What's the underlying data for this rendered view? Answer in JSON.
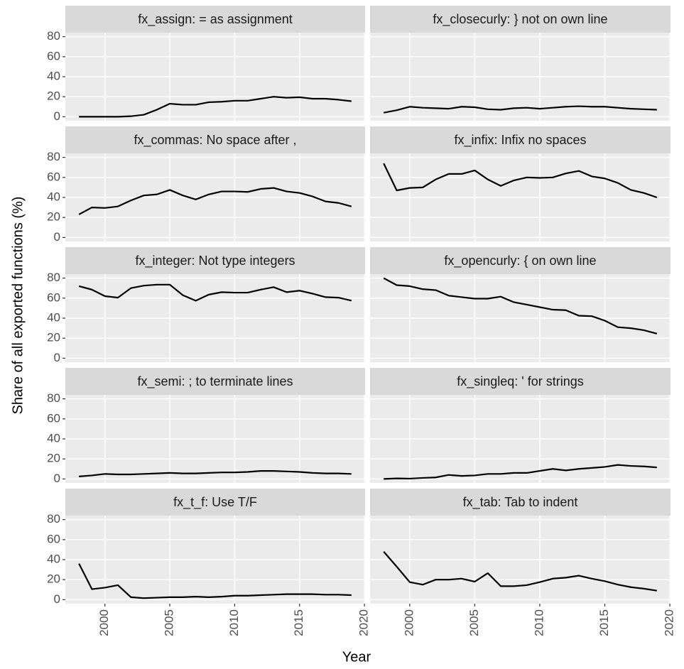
{
  "axis_labels": {
    "x": "Year",
    "y": "Share of all exported functions (%)"
  },
  "chart_data": [
    {
      "type": "line",
      "title": "fx_assign: = as assignment",
      "color": "#000000",
      "grid": true,
      "x": [
        1998,
        1999,
        2000,
        2001,
        2002,
        2003,
        2004,
        2005,
        2006,
        2007,
        2008,
        2009,
        2010,
        2011,
        2012,
        2013,
        2014,
        2015,
        2016,
        2017,
        2018,
        2019
      ],
      "values": [
        0,
        0,
        0,
        0,
        0.5,
        2,
        7,
        13,
        12,
        12,
        14.5,
        15,
        16,
        16,
        18,
        20,
        19,
        19.5,
        18,
        18,
        17,
        15.5
      ],
      "xlim": [
        1996.95,
        2020.05
      ],
      "ylim": [
        -4,
        84
      ],
      "xticks": [
        2000,
        2005,
        2010,
        2015,
        2020
      ],
      "yticks": [
        0,
        20,
        40,
        60,
        80
      ]
    },
    {
      "type": "line",
      "title": "fx_closecurly: } not on own line",
      "color": "#000000",
      "grid": true,
      "x": [
        1998,
        1999,
        2000,
        2001,
        2002,
        2003,
        2004,
        2005,
        2006,
        2007,
        2008,
        2009,
        2010,
        2011,
        2012,
        2013,
        2014,
        2015,
        2016,
        2017,
        2018,
        2019
      ],
      "values": [
        4,
        6.5,
        10,
        9,
        8.5,
        8,
        10,
        9.5,
        7.5,
        7,
        8.5,
        9,
        8,
        9,
        10,
        10.5,
        10,
        10,
        9,
        8,
        7.5,
        7
      ],
      "xlim": [
        1996.95,
        2020.05
      ],
      "ylim": [
        -4,
        84
      ],
      "xticks": [
        2000,
        2005,
        2010,
        2015,
        2020
      ],
      "yticks": [
        0,
        20,
        40,
        60,
        80
      ]
    },
    {
      "type": "line",
      "title": "fx_commas: No space after ,",
      "color": "#000000",
      "grid": true,
      "x": [
        1998,
        1999,
        2000,
        2001,
        2002,
        2003,
        2004,
        2005,
        2006,
        2007,
        2008,
        2009,
        2010,
        2011,
        2012,
        2013,
        2014,
        2015,
        2016,
        2017,
        2018,
        2019
      ],
      "values": [
        23,
        30,
        29.5,
        31,
        37,
        42,
        43,
        47.5,
        42,
        38,
        43,
        46,
        46,
        45.5,
        48.5,
        49.5,
        46,
        44.5,
        41,
        36,
        34.5,
        31
      ],
      "xlim": [
        1996.95,
        2020.05
      ],
      "ylim": [
        -4,
        84
      ],
      "xticks": [
        2000,
        2005,
        2010,
        2015,
        2020
      ],
      "yticks": [
        0,
        20,
        40,
        60,
        80
      ]
    },
    {
      "type": "line",
      "title": "fx_infix: Infix no spaces",
      "color": "#000000",
      "grid": true,
      "x": [
        1998,
        1999,
        2000,
        2001,
        2002,
        2003,
        2004,
        2005,
        2006,
        2007,
        2008,
        2009,
        2010,
        2011,
        2012,
        2013,
        2014,
        2015,
        2016,
        2017,
        2018,
        2019
      ],
      "values": [
        74,
        47,
        49.5,
        50,
        58,
        63.5,
        63.5,
        67,
        58,
        51.5,
        57,
        60,
        59.5,
        60,
        64,
        66.5,
        61,
        59,
        54.5,
        47.5,
        44.5,
        40
      ],
      "xlim": [
        1996.95,
        2020.05
      ],
      "ylim": [
        -4,
        84
      ],
      "xticks": [
        2000,
        2005,
        2010,
        2015,
        2020
      ],
      "yticks": [
        0,
        20,
        40,
        60,
        80
      ]
    },
    {
      "type": "line",
      "title": "fx_integer: Not type integers",
      "color": "#000000",
      "grid": true,
      "x": [
        1998,
        1999,
        2000,
        2001,
        2002,
        2003,
        2004,
        2005,
        2006,
        2007,
        2008,
        2009,
        2010,
        2011,
        2012,
        2013,
        2014,
        2015,
        2016,
        2017,
        2018,
        2019
      ],
      "values": [
        72,
        68.5,
        62,
        60.5,
        70,
        72.5,
        73.5,
        73.5,
        63,
        57.5,
        63.5,
        66,
        65.5,
        65.5,
        68.5,
        71,
        66,
        67.5,
        64.5,
        61,
        60.5,
        57.5
      ],
      "xlim": [
        1996.95,
        2020.05
      ],
      "ylim": [
        -4,
        84
      ],
      "xticks": [
        2000,
        2005,
        2010,
        2015,
        2020
      ],
      "yticks": [
        0,
        20,
        40,
        60,
        80
      ]
    },
    {
      "type": "line",
      "title": "fx_opencurly: { on own line",
      "color": "#000000",
      "grid": true,
      "x": [
        1998,
        1999,
        2000,
        2001,
        2002,
        2003,
        2004,
        2005,
        2006,
        2007,
        2008,
        2009,
        2010,
        2011,
        2012,
        2013,
        2014,
        2015,
        2016,
        2017,
        2018,
        2019
      ],
      "values": [
        80,
        73,
        72,
        69,
        68,
        62.5,
        61,
        59.5,
        59.5,
        61.5,
        56,
        53.5,
        51,
        48.5,
        48,
        42.5,
        42,
        37.5,
        31,
        30,
        28,
        24.5
      ],
      "xlim": [
        1996.95,
        2020.05
      ],
      "ylim": [
        -4,
        84
      ],
      "xticks": [
        2000,
        2005,
        2010,
        2015,
        2020
      ],
      "yticks": [
        0,
        20,
        40,
        60,
        80
      ]
    },
    {
      "type": "line",
      "title": "fx_semi: ; to terminate lines",
      "color": "#000000",
      "grid": true,
      "x": [
        1998,
        1999,
        2000,
        2001,
        2002,
        2003,
        2004,
        2005,
        2006,
        2007,
        2008,
        2009,
        2010,
        2011,
        2012,
        2013,
        2014,
        2015,
        2016,
        2017,
        2018,
        2019
      ],
      "values": [
        2.5,
        3.5,
        5,
        4.5,
        4.5,
        5,
        5.5,
        6,
        5.5,
        5.5,
        6,
        6.5,
        6.5,
        7,
        8,
        8,
        7.5,
        7,
        6,
        5.5,
        5.5,
        5
      ],
      "xlim": [
        1996.95,
        2020.05
      ],
      "ylim": [
        -4,
        84
      ],
      "xticks": [
        2000,
        2005,
        2010,
        2015,
        2020
      ],
      "yticks": [
        0,
        20,
        40,
        60,
        80
      ]
    },
    {
      "type": "line",
      "title": "fx_singleq: ' for strings",
      "color": "#000000",
      "grid": true,
      "x": [
        1998,
        1999,
        2000,
        2001,
        2002,
        2003,
        2004,
        2005,
        2006,
        2007,
        2008,
        2009,
        2010,
        2011,
        2012,
        2013,
        2014,
        2015,
        2016,
        2017,
        2018,
        2019
      ],
      "values": [
        0,
        0.5,
        0.3,
        1,
        1.5,
        4,
        3,
        3.5,
        5,
        5,
        6,
        6,
        8,
        10,
        8.5,
        10,
        11,
        12,
        14,
        13,
        12.5,
        11.5
      ],
      "xlim": [
        1996.95,
        2020.05
      ],
      "ylim": [
        -4,
        84
      ],
      "xticks": [
        2000,
        2005,
        2010,
        2015,
        2020
      ],
      "yticks": [
        0,
        20,
        40,
        60,
        80
      ]
    },
    {
      "type": "line",
      "title": "fx_t_f: Use T/F",
      "color": "#000000",
      "grid": true,
      "x": [
        1998,
        1999,
        2000,
        2001,
        2002,
        2003,
        2004,
        2005,
        2006,
        2007,
        2008,
        2009,
        2010,
        2011,
        2012,
        2013,
        2014,
        2015,
        2016,
        2017,
        2018,
        2019
      ],
      "values": [
        36,
        10.5,
        12,
        14.5,
        2.5,
        1.5,
        2,
        2.5,
        2.5,
        3,
        2.5,
        3,
        4,
        4,
        4.5,
        5,
        5.5,
        5.5,
        5.5,
        5,
        5,
        4.5
      ],
      "xlim": [
        1996.95,
        2020.05
      ],
      "ylim": [
        -4,
        84
      ],
      "xticks": [
        2000,
        2005,
        2010,
        2015,
        2020
      ],
      "yticks": [
        0,
        20,
        40,
        60,
        80
      ]
    },
    {
      "type": "line",
      "title": "fx_tab: Tab to indent",
      "color": "#000000",
      "grid": true,
      "x": [
        1998,
        1999,
        2000,
        2001,
        2002,
        2003,
        2004,
        2005,
        2006,
        2007,
        2008,
        2009,
        2010,
        2011,
        2012,
        2013,
        2014,
        2015,
        2016,
        2017,
        2018,
        2019
      ],
      "values": [
        48,
        33,
        17.5,
        15,
        20,
        20,
        21,
        18,
        26.5,
        13.5,
        13.5,
        14.5,
        17.5,
        21,
        22,
        24,
        21,
        18.5,
        15,
        12.5,
        11,
        9
      ],
      "xlim": [
        1996.95,
        2020.05
      ],
      "ylim": [
        -4,
        84
      ],
      "xticks": [
        2000,
        2005,
        2010,
        2015,
        2020
      ],
      "yticks": [
        0,
        20,
        40,
        60,
        80
      ]
    }
  ]
}
